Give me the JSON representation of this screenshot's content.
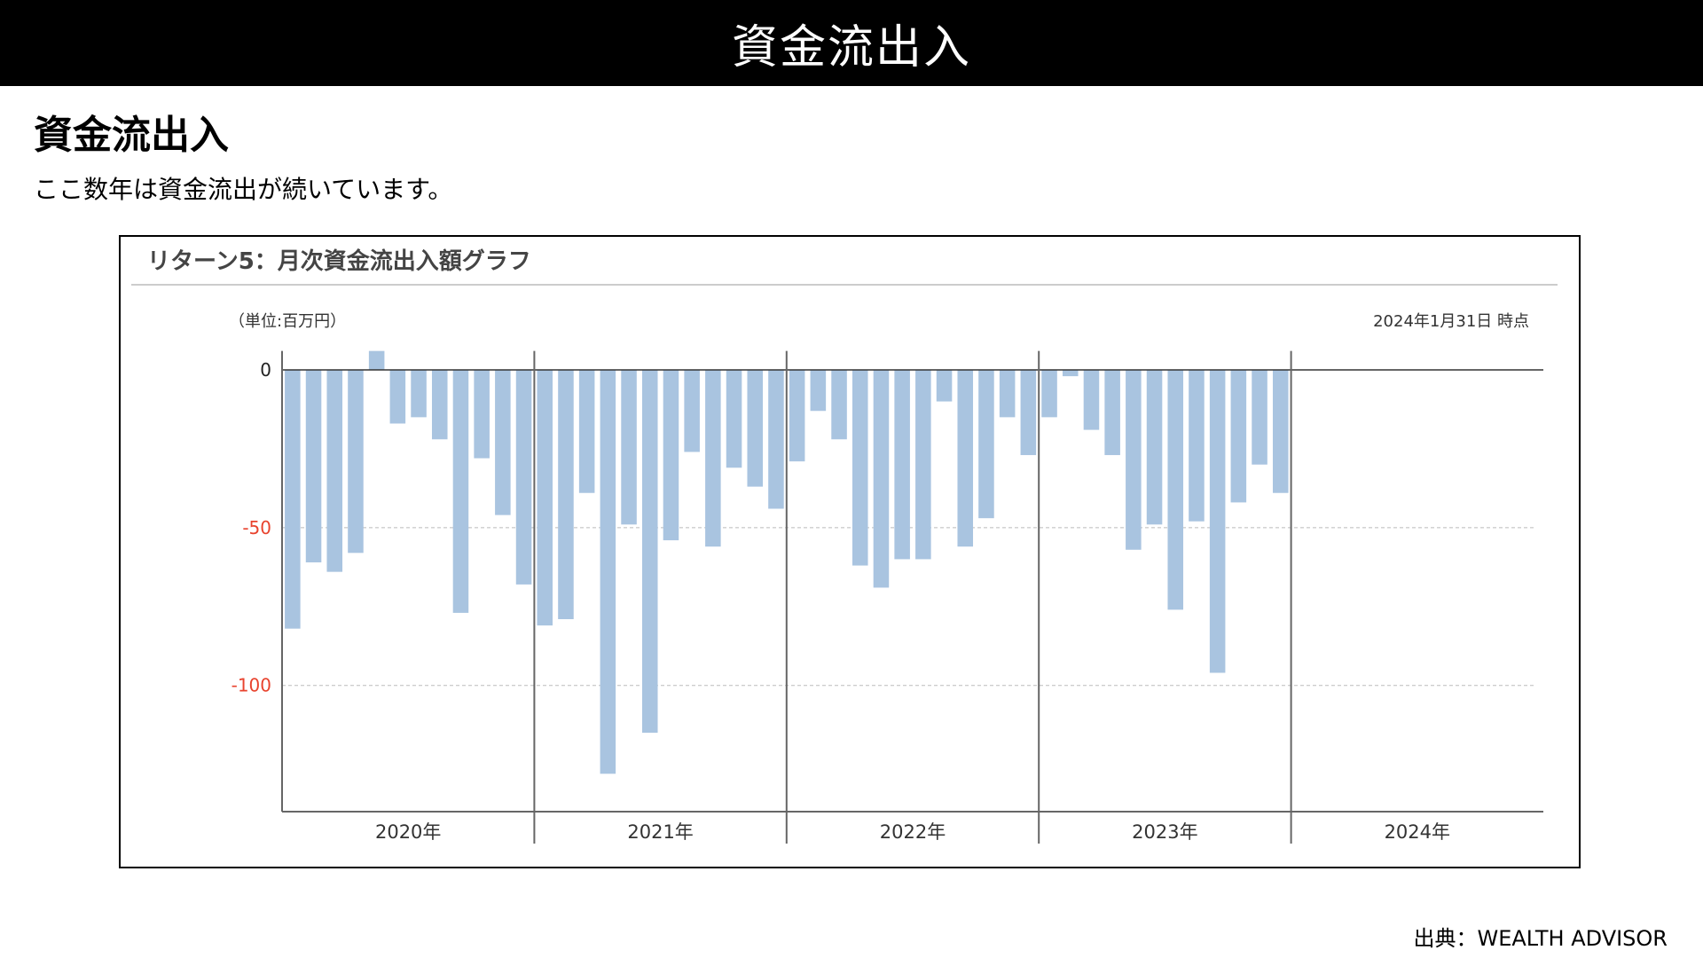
{
  "header": {
    "title": "資金流出入"
  },
  "section": {
    "heading": "資金流出入",
    "description": "ここ数年は資金流出が続いています。"
  },
  "chart_data": {
    "type": "bar",
    "title": "リターン5：月次資金流出入額グラフ",
    "unit_label": "（単位:百万円）",
    "as_of": "2024年1月31日 時点",
    "xlabel": "",
    "ylabel": "",
    "ylim": [
      -140,
      6
    ],
    "yticks": [
      {
        "value": 0,
        "label": "0",
        "color": "#222222"
      },
      {
        "value": -50,
        "label": "-50",
        "color": "#e8432e"
      },
      {
        "value": -100,
        "label": "-100",
        "color": "#e8432e"
      }
    ],
    "years": [
      "2020年",
      "2021年",
      "2022年",
      "2023年",
      "2024年"
    ],
    "months_per_year": 12,
    "grid": true,
    "bar_color": "#a9c4e0",
    "series": [
      {
        "values": [
          -82,
          -61,
          -64,
          -58,
          6,
          -17,
          -15,
          -22,
          -77,
          -28,
          -46,
          -68,
          -81,
          -79,
          -39,
          -128,
          -49,
          -115,
          -54,
          -26,
          -56,
          -31,
          -37,
          -44,
          -29,
          -13,
          -22,
          -62,
          -69,
          -60,
          -60,
          -10,
          -56,
          -47,
          -15,
          -27,
          -15,
          -2,
          -19,
          -27,
          -57,
          -49,
          -76,
          -48,
          -96,
          -42,
          -30,
          -39,
          null
        ]
      }
    ]
  },
  "footer": {
    "source": "出典：WEALTH ADVISOR"
  }
}
